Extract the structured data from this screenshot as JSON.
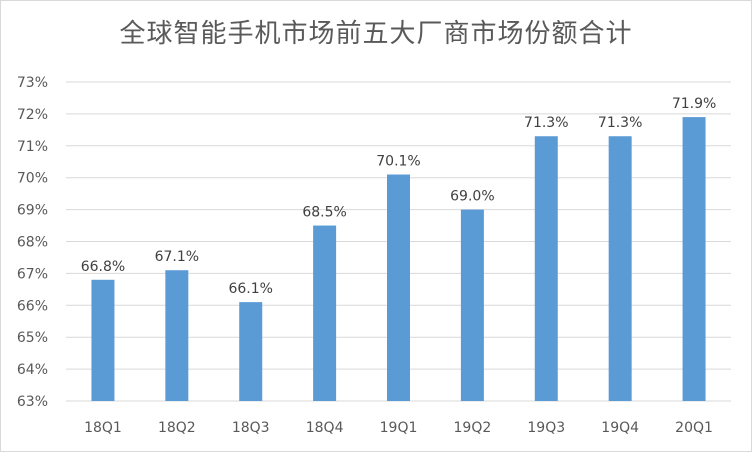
{
  "chart_data": {
    "type": "bar",
    "title": "全球智能手机市场前五大厂商市场份额合计",
    "xlabel": "",
    "ylabel": "",
    "categories": [
      "18Q1",
      "18Q2",
      "18Q3",
      "18Q4",
      "19Q1",
      "19Q2",
      "19Q3",
      "19Q4",
      "20Q1"
    ],
    "values": [
      66.8,
      67.1,
      66.1,
      68.5,
      70.1,
      69.0,
      71.3,
      71.3,
      71.9
    ],
    "data_labels": [
      "66.8%",
      "67.1%",
      "66.1%",
      "68.5%",
      "70.1%",
      "69.0%",
      "71.3%",
      "71.3%",
      "71.9%"
    ],
    "ylim": [
      63,
      73
    ],
    "yticks": [
      "63%",
      "64%",
      "65%",
      "66%",
      "67%",
      "68%",
      "69%",
      "70%",
      "71%",
      "72%",
      "73%"
    ],
    "grid": true,
    "legend": "none",
    "bar_color": "#5b9bd5",
    "grid_color": "#d9d9d9"
  }
}
